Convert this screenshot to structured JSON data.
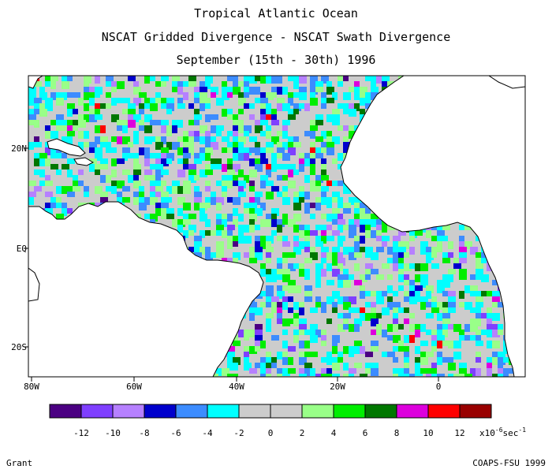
{
  "titles": {
    "line1": "Tropical Atlantic Ocean",
    "line2": "NSCAT Gridded Divergence - NSCAT Swath Divergence",
    "line3": "September (15th - 30th) 1996"
  },
  "axes": {
    "x_ticks": [
      "80W",
      "60W",
      "40W",
      "20W",
      "0"
    ],
    "y_ticks": [
      "20N",
      "EQ",
      "20S"
    ]
  },
  "colorbar": {
    "colors": [
      "#4b0082",
      "#7f3fff",
      "#b680ff",
      "#0000cc",
      "#3c8cff",
      "#00ffff",
      "#cccccc",
      "#cccccc",
      "#99ff88",
      "#00ee00",
      "#007700",
      "#dd00dd",
      "#ff0000",
      "#990000"
    ],
    "tick_labels": [
      "-12",
      "-10",
      "-8",
      "-6",
      "-4",
      "-2",
      "0",
      "2",
      "4",
      "6",
      "8",
      "10",
      "12"
    ],
    "unit_prefix": "x10",
    "unit_exp": "-6",
    "unit_suffix": "sec",
    "unit_suffix_exp": "-1"
  },
  "footer": {
    "left": "Grant",
    "right": "COAPS-FSU 1999"
  },
  "palette": {
    "land": "#ffffff",
    "ocean_gray": "#cccccc",
    "coast": "#000000"
  }
}
